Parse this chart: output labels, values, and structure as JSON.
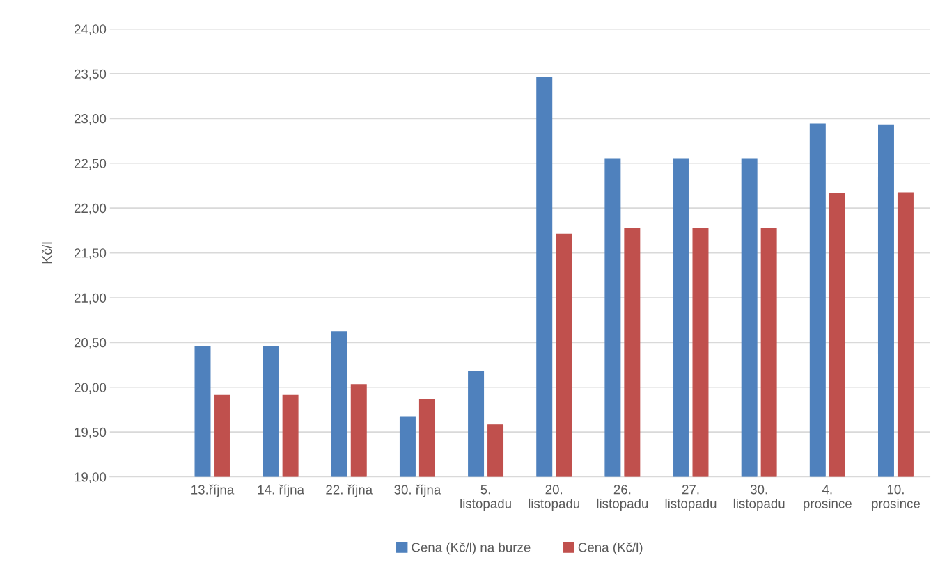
{
  "chart_data": {
    "type": "bar",
    "ylabel": "Kč/l",
    "categories": [
      null,
      "13.října",
      "14. října",
      "22. října",
      "30. října",
      "5.\nlistopadu",
      "20.\nlistopadu",
      "26.\nlistopadu",
      "27.\nlistopadu",
      "30.\nlistopadu",
      "4.\nprosince",
      "10.\nprosince"
    ],
    "series": [
      {
        "name": "Cena (Kč/l) na burze",
        "color": "#4f81bd",
        "values": [
          null,
          20.45,
          20.45,
          20.62,
          19.67,
          20.18,
          23.46,
          22.55,
          22.55,
          22.55,
          22.94,
          22.93
        ]
      },
      {
        "name": "Cena (Kč/l)",
        "color": "#c0504d",
        "values": [
          null,
          19.91,
          19.91,
          20.03,
          19.86,
          19.58,
          21.71,
          21.77,
          21.77,
          21.77,
          22.16,
          22.17
        ]
      }
    ],
    "ylim": [
      19,
      24
    ],
    "yticks": [
      {
        "value": 19,
        "label": "19,00"
      },
      {
        "value": 19.5,
        "label": "19,50"
      },
      {
        "value": 20,
        "label": "20,00"
      },
      {
        "value": 20.5,
        "label": "20,50"
      },
      {
        "value": 21,
        "label": "21,00"
      },
      {
        "value": 21.5,
        "label": "21,50"
      },
      {
        "value": 22,
        "label": "22,00"
      },
      {
        "value": 22.5,
        "label": "22,50"
      },
      {
        "value": 23,
        "label": "23,00"
      },
      {
        "value": 23.5,
        "label": "23,50"
      },
      {
        "value": 24,
        "label": "24,00"
      }
    ],
    "grid": "y",
    "legend": "bottom"
  }
}
